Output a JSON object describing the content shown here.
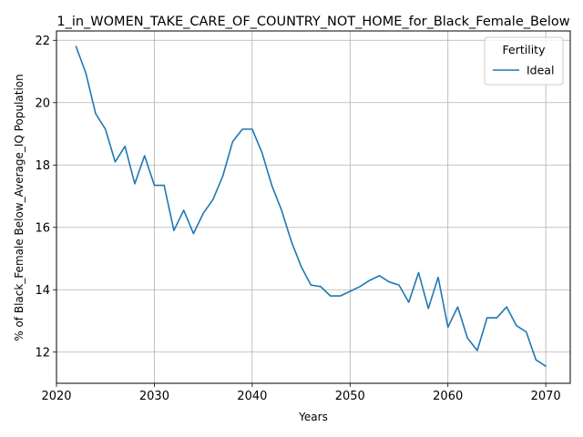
{
  "chart_data": {
    "type": "line",
    "title": "1_in_WOMEN_TAKE_CARE_OF_COUNTRY_NOT_HOME_for_Black_Female_Below",
    "xlabel": "Years",
    "ylabel": "% of Black_Female Below_Average_IQ Population",
    "xlim": [
      2020,
      2072.5
    ],
    "ylim": [
      11.0,
      22.3
    ],
    "xticks": [
      "2020",
      "2030",
      "2040",
      "2050",
      "2060",
      "2070"
    ],
    "yticks": [
      "12",
      "14",
      "16",
      "18",
      "20",
      "22"
    ],
    "grid": true,
    "legend": {
      "title": "Fertility",
      "placement": "top-right"
    },
    "series": [
      {
        "name": "Ideal",
        "color": "#1f77b4",
        "x": [
          2022,
          2023,
          2024,
          2025,
          2026,
          2027,
          2028,
          2029,
          2030,
          2031,
          2032,
          2033,
          2034,
          2035,
          2036,
          2037,
          2038,
          2039,
          2040,
          2041,
          2042,
          2043,
          2044,
          2045,
          2046,
          2047,
          2048,
          2049,
          2050,
          2051,
          2052,
          2053,
          2054,
          2055,
          2056,
          2057,
          2058,
          2059,
          2060,
          2061,
          2062,
          2063,
          2064,
          2065,
          2066,
          2067,
          2068,
          2069,
          2070
        ],
        "y": [
          21.8,
          20.95,
          19.65,
          19.15,
          18.1,
          18.6,
          17.4,
          18.3,
          17.35,
          17.35,
          15.9,
          16.55,
          15.8,
          16.45,
          16.9,
          17.65,
          18.75,
          19.15,
          19.15,
          18.4,
          17.35,
          16.55,
          15.55,
          14.75,
          14.15,
          14.1,
          13.8,
          13.8,
          13.95,
          14.1,
          14.3,
          14.45,
          14.25,
          14.15,
          13.6,
          14.55,
          13.4,
          14.4,
          12.8,
          13.45,
          12.45,
          12.05,
          13.1,
          13.1,
          13.45,
          12.85,
          12.65,
          11.75,
          11.55
        ]
      }
    ]
  }
}
